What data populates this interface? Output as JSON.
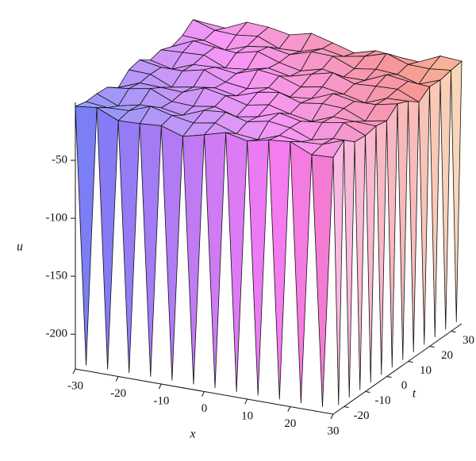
{
  "chart_data": {
    "type": "surface",
    "xlabel": "x",
    "ylabel": "t",
    "zlabel": "u",
    "xlim": [
      -30,
      30
    ],
    "xticks": [
      -30,
      -20,
      -10,
      0,
      10,
      20,
      30
    ],
    "ylim": [
      -25,
      35
    ],
    "yticks": [
      -20,
      -10,
      0,
      10,
      20,
      30
    ],
    "zlim": [
      -230,
      0
    ],
    "zticks": [
      -200,
      -150,
      -100,
      -50
    ]
  }
}
